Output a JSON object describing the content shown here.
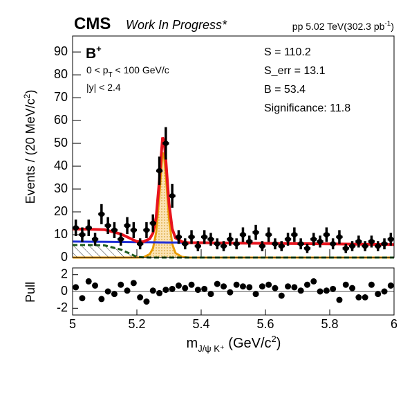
{
  "chart_data": [
    {
      "type": "errorbar",
      "brand": "CMS",
      "status": "Work In Progress*",
      "lumi": "pp 5.02 TeV(302.3 pb",
      "lumi_sup": "-1",
      "lumi_close": ")",
      "title": "B",
      "title_sup": "+",
      "cut_pt_a": "0 < p",
      "cut_pt_sub": "T",
      "cut_pt_b": " < 100 GeV/c",
      "cut_y": "|y| < 2.4",
      "stats": [
        "S = 110.2",
        "S_err = 13.1",
        "B = 53.4",
        "Significance: 11.8"
      ],
      "ylabel": "Events / (20 MeV/c",
      "ylabel_sup": "2",
      "ylabel_close": ")",
      "xlim": [
        5,
        6
      ],
      "ylim": [
        0,
        97
      ],
      "yticks": [
        0,
        10,
        20,
        30,
        40,
        50,
        60,
        70,
        80,
        90
      ],
      "color": "#000000",
      "x": [
        5.01,
        5.03,
        5.05,
        5.07,
        5.09,
        5.11,
        5.13,
        5.15,
        5.17,
        5.19,
        5.21,
        5.23,
        5.25,
        5.27,
        5.29,
        5.31,
        5.33,
        5.35,
        5.37,
        5.39,
        5.41,
        5.43,
        5.45,
        5.47,
        5.49,
        5.51,
        5.53,
        5.55,
        5.57,
        5.59,
        5.61,
        5.63,
        5.65,
        5.67,
        5.69,
        5.71,
        5.73,
        5.75,
        5.77,
        5.79,
        5.81,
        5.83,
        5.85,
        5.87,
        5.89,
        5.91,
        5.93,
        5.95,
        5.97,
        5.99
      ],
      "values": [
        13,
        10,
        13,
        8,
        19,
        14,
        12,
        8,
        14,
        12,
        6,
        12,
        15,
        38,
        50,
        27,
        9,
        6,
        9,
        5,
        9,
        8,
        6,
        5,
        8,
        6,
        10,
        7,
        11,
        5,
        10,
        6,
        5,
        8,
        10,
        6,
        4,
        8,
        7,
        10,
        6,
        9,
        4,
        5,
        7,
        5,
        7,
        5,
        6,
        8
      ],
      "errors": [
        3.6,
        3.2,
        3.6,
        2.8,
        4.4,
        3.7,
        3.5,
        2.8,
        3.7,
        3.5,
        2.4,
        3.5,
        3.9,
        6.2,
        7.1,
        5.2,
        3,
        2.4,
        3,
        2.2,
        3,
        2.8,
        2.4,
        2.2,
        2.8,
        2.4,
        3.2,
        2.6,
        3.3,
        2.2,
        3.2,
        2.4,
        2.2,
        2.8,
        3.2,
        2.4,
        2,
        2.8,
        2.6,
        3.2,
        2.4,
        3,
        2,
        2.2,
        2.6,
        2.2,
        2.6,
        2.2,
        2.4,
        2.8
      ],
      "fit_x": [
        5.0,
        5.05,
        5.1,
        5.15,
        5.2,
        5.22,
        5.24,
        5.25,
        5.26,
        5.27,
        5.275,
        5.28,
        5.285,
        5.29,
        5.3,
        5.31,
        5.32,
        5.34,
        5.36,
        5.4,
        5.5,
        5.6,
        5.7,
        5.8,
        5.9,
        6.0
      ],
      "fits": [
        {
          "color": "#e89a00",
          "fill": "#fbe3b4",
          "values": [
            0,
            0,
            0,
            0,
            0,
            0.1,
            1.5,
            4,
            11,
            27,
            37,
            46,
            44,
            36,
            17,
            6,
            2,
            0.3,
            0,
            0,
            0,
            0,
            0,
            0,
            0,
            0
          ]
        },
        {
          "color": "#1e5a1e",
          "fill": "hatch",
          "dash": true,
          "values": [
            5.5,
            5.5,
            5.3,
            3.5,
            0.3,
            0.1,
            0,
            0,
            0,
            0,
            0,
            0,
            0,
            0,
            0,
            0,
            0,
            0,
            0,
            0,
            0,
            0,
            0,
            0,
            0,
            0
          ]
        },
        {
          "color": "#1f2fd6",
          "values": [
            7.0,
            6.94,
            6.87,
            6.81,
            6.74,
            6.71,
            6.69,
            6.68,
            6.66,
            6.65,
            6.64,
            6.64,
            6.63,
            6.62,
            6.61,
            6.6,
            6.58,
            6.56,
            6.53,
            6.48,
            6.35,
            6.22,
            6.09,
            5.96,
            5.83,
            5.7
          ]
        },
        {
          "color": "#e8141e",
          "values": [
            12.5,
            12.4,
            12.2,
            10.3,
            7.0,
            6.9,
            8.2,
            10.7,
            17.7,
            33.6,
            43.6,
            52.6,
            50.6,
            42.6,
            23.6,
            12.6,
            8.6,
            6.9,
            6.5,
            6.5,
            6.35,
            6.22,
            6.09,
            5.96,
            5.83,
            5.7
          ]
        }
      ]
    },
    {
      "type": "scatter",
      "ylabel": "Pull",
      "xlabel": "m",
      "xlabel_sub": "J/ψ K⁺",
      "xlabel_mid": " (GeV/c",
      "xlabel_sup": "2",
      "xlabel_close": ")",
      "xlim": [
        5,
        6
      ],
      "ylim": [
        -2.8,
        2.8
      ],
      "xticks": [
        5,
        5.2,
        5.4,
        5.6,
        5.8,
        6
      ],
      "yticks": [
        -2,
        0,
        2
      ],
      "color": "#000000",
      "x": [
        5.01,
        5.03,
        5.05,
        5.07,
        5.09,
        5.11,
        5.13,
        5.15,
        5.17,
        5.19,
        5.21,
        5.23,
        5.25,
        5.27,
        5.29,
        5.31,
        5.33,
        5.35,
        5.37,
        5.39,
        5.41,
        5.43,
        5.45,
        5.47,
        5.49,
        5.51,
        5.53,
        5.55,
        5.57,
        5.59,
        5.61,
        5.63,
        5.65,
        5.67,
        5.69,
        5.71,
        5.73,
        5.75,
        5.77,
        5.79,
        5.81,
        5.83,
        5.85,
        5.87,
        5.89,
        5.91,
        5.93,
        5.95,
        5.97,
        5.99
      ],
      "values": [
        0.5,
        -0.8,
        1.2,
        0.7,
        -0.9,
        0,
        -0.3,
        0.8,
        0.1,
        1.0,
        -0.7,
        -1.2,
        0.1,
        -0.2,
        0.2,
        0.3,
        0.7,
        0.4,
        0.8,
        0.2,
        0.3,
        -0.3,
        0.9,
        0.6,
        -0.1,
        0.8,
        0.6,
        0.5,
        -0.3,
        0.6,
        0.8,
        0.4,
        -0.5,
        0.6,
        0.5,
        0.1,
        0.8,
        1.2,
        0,
        0.1,
        0.3,
        -1.0,
        0.8,
        0.4,
        -0.7,
        -0.7,
        0.8,
        -0.3,
        0,
        0.7
      ]
    }
  ]
}
